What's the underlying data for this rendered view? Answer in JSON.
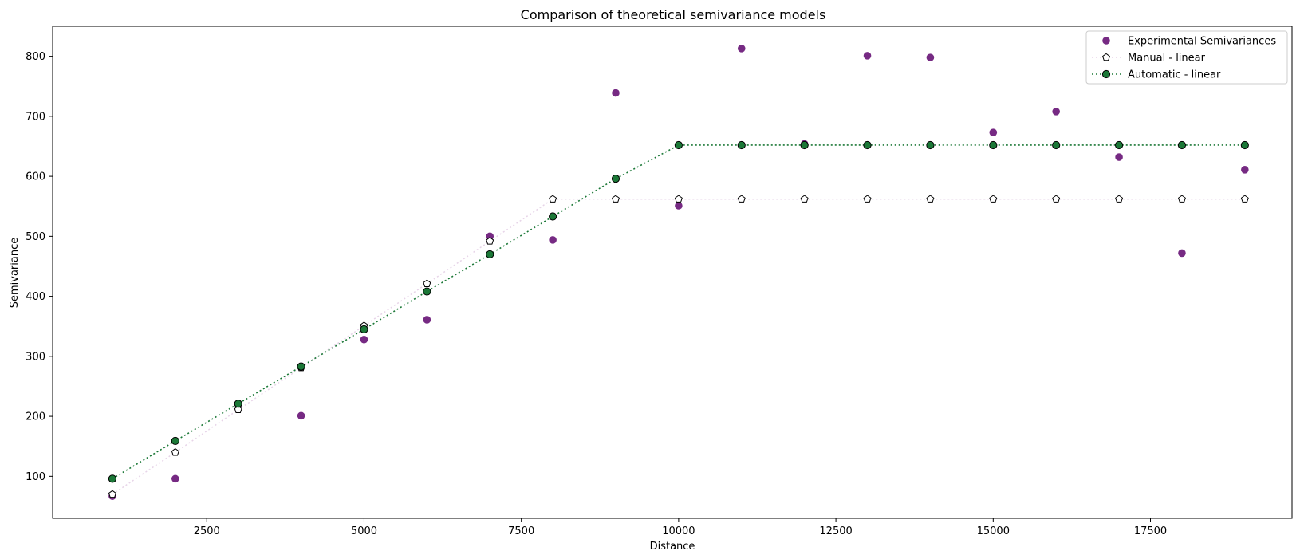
{
  "chart_data": {
    "type": "scatter",
    "title": "Comparison of theoretical semivariance models",
    "xlabel": "Distance",
    "ylabel": "Semivariance",
    "xlim": [
      50,
      19750
    ],
    "ylim": [
      30,
      850
    ],
    "xticks": [
      2500,
      5000,
      7500,
      10000,
      12500,
      15000,
      17500
    ],
    "yticks": [
      100,
      200,
      300,
      400,
      500,
      600,
      700,
      800
    ],
    "grid": false,
    "legend_position": "top-right",
    "x": [
      1000,
      2000,
      3000,
      4000,
      5000,
      6000,
      7000,
      8000,
      9000,
      10000,
      11000,
      12000,
      13000,
      14000,
      15000,
      16000,
      17000,
      18000,
      19000
    ],
    "series": [
      {
        "name": "Experimental Semivariances",
        "style": "scatter",
        "color": "#762a83",
        "values": [
          67,
          96,
          220,
          201,
          328,
          361,
          500,
          494,
          739,
          551,
          813,
          654,
          801,
          798,
          673,
          708,
          632,
          472,
          611
        ]
      },
      {
        "name": "Manual - linear",
        "style": "dotted-line-pentagon",
        "color": "#e7d4e8",
        "marker_fill": "#ffffff",
        "values": [
          70,
          140,
          211,
          281,
          351,
          421,
          492,
          562,
          562,
          562,
          562,
          562,
          562,
          562,
          562,
          562,
          562,
          562,
          562
        ]
      },
      {
        "name": "Automatic - linear",
        "style": "dotted-line-circle",
        "color": "#1b7837",
        "marker_fill": "#1b7837",
        "values": [
          96,
          159,
          221,
          283,
          345,
          408,
          470,
          533,
          596,
          652,
          652,
          652,
          652,
          652,
          652,
          652,
          652,
          652,
          652
        ]
      }
    ]
  }
}
